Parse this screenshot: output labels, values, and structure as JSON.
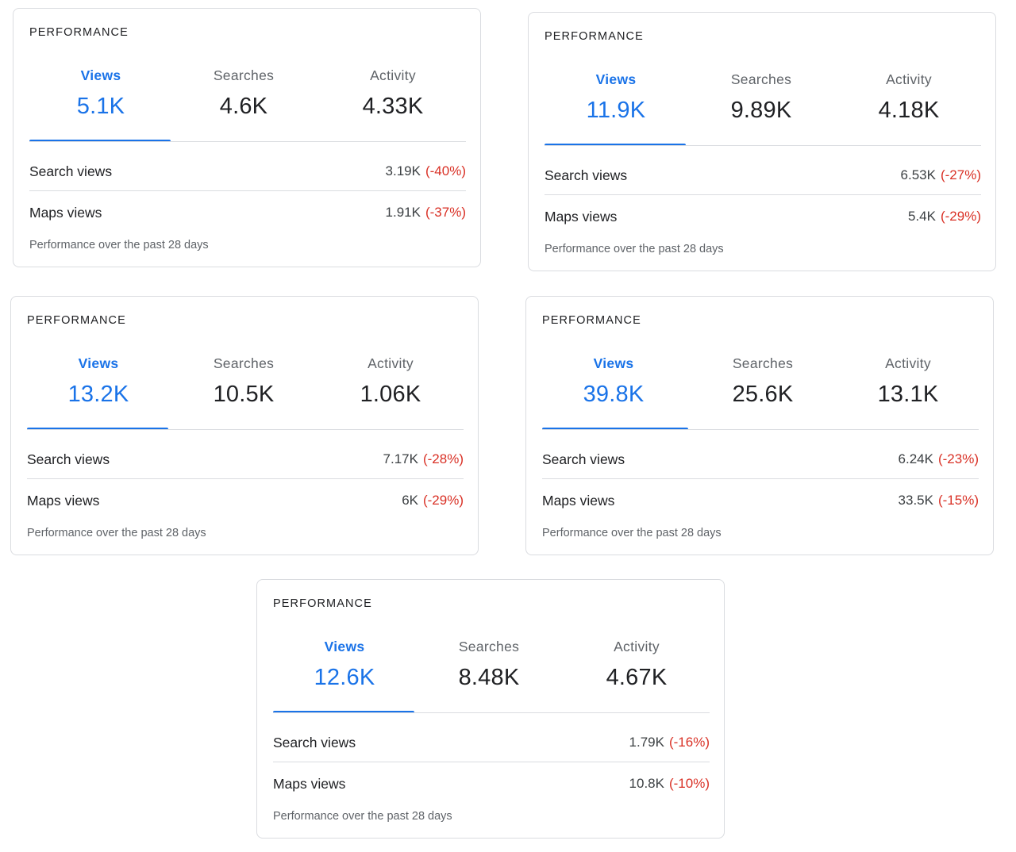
{
  "cards": [
    {
      "title": "PERFORMANCE",
      "tabs": [
        {
          "label": "Views",
          "value": "5.1K"
        },
        {
          "label": "Searches",
          "value": "4.6K"
        },
        {
          "label": "Activity",
          "value": "4.33K"
        }
      ],
      "active_tab": "Views",
      "rows": [
        {
          "label": "Search views",
          "value": "3.19K",
          "change": "(-40%)"
        },
        {
          "label": "Maps views",
          "value": "1.91K",
          "change": "(-37%)"
        }
      ],
      "footer": "Performance over the past 28 days"
    },
    {
      "title": "PERFORMANCE",
      "tabs": [
        {
          "label": "Views",
          "value": "11.9K"
        },
        {
          "label": "Searches",
          "value": "9.89K"
        },
        {
          "label": "Activity",
          "value": "4.18K"
        }
      ],
      "active_tab": "Views",
      "rows": [
        {
          "label": "Search views",
          "value": "6.53K",
          "change": "(-27%)"
        },
        {
          "label": "Maps views",
          "value": "5.4K",
          "change": "(-29%)"
        }
      ],
      "footer": "Performance over the past 28 days"
    },
    {
      "title": "PERFORMANCE",
      "tabs": [
        {
          "label": "Views",
          "value": "13.2K"
        },
        {
          "label": "Searches",
          "value": "10.5K"
        },
        {
          "label": "Activity",
          "value": "1.06K"
        }
      ],
      "active_tab": "Views",
      "rows": [
        {
          "label": "Search views",
          "value": "7.17K",
          "change": "(-28%)"
        },
        {
          "label": "Maps views",
          "value": "6K",
          "change": "(-29%)"
        }
      ],
      "footer": "Performance over the past 28 days"
    },
    {
      "title": "PERFORMANCE",
      "tabs": [
        {
          "label": "Views",
          "value": "39.8K"
        },
        {
          "label": "Searches",
          "value": "25.6K"
        },
        {
          "label": "Activity",
          "value": "13.1K"
        }
      ],
      "active_tab": "Views",
      "rows": [
        {
          "label": "Search views",
          "value": "6.24K",
          "change": "(-23%)"
        },
        {
          "label": "Maps views",
          "value": "33.5K",
          "change": "(-15%)"
        }
      ],
      "footer": "Performance over the past 28 days"
    },
    {
      "title": "PERFORMANCE",
      "tabs": [
        {
          "label": "Views",
          "value": "12.6K"
        },
        {
          "label": "Searches",
          "value": "8.48K"
        },
        {
          "label": "Activity",
          "value": "4.67K"
        }
      ],
      "active_tab": "Views",
      "rows": [
        {
          "label": "Search views",
          "value": "1.79K",
          "change": "(-16%)"
        },
        {
          "label": "Maps views",
          "value": "10.8K",
          "change": "(-10%)"
        }
      ],
      "footer": "Performance over the past 28 days"
    }
  ],
  "colors": {
    "accent": "#1a73e8",
    "negative_change": "#d93025",
    "border": "#dadce0",
    "text_primary": "#202124",
    "text_secondary": "#5f6368"
  }
}
